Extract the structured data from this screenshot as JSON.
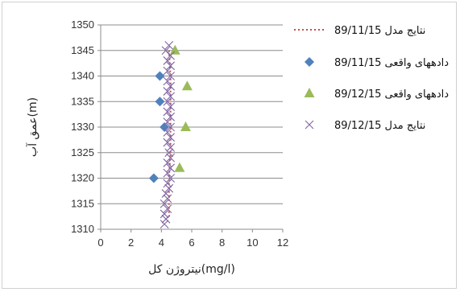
{
  "chart_data": {
    "type": "scatter",
    "xlabel": "نیتروژن کل(mg/l)",
    "ylabel": "عمق آب(m)",
    "xlim": [
      0,
      12
    ],
    "ylim": [
      1310,
      1350
    ],
    "x_ticks": [
      "0",
      "2",
      "4",
      "6",
      "8",
      "10",
      "12"
    ],
    "y_ticks": [
      "1310",
      "1315",
      "1320",
      "1325",
      "1330",
      "1335",
      "1340",
      "1345",
      "1350"
    ],
    "grid": "horizontal",
    "legend_position": "right",
    "series": [
      {
        "name": "89/11/15 نتایج مدل",
        "kind": "dotted-line",
        "color": "#c0504d",
        "points": [
          [
            4.5,
            1345
          ],
          [
            4.6,
            1340
          ],
          [
            4.6,
            1335
          ],
          [
            4.6,
            1330
          ],
          [
            4.6,
            1325
          ],
          [
            4.5,
            1320
          ],
          [
            4.5,
            1315
          ],
          [
            4.5,
            1312
          ]
        ]
      },
      {
        "name": "89/11/15 دادههای واقعی",
        "kind": "diamond",
        "color": "#4f81bd",
        "points": [
          [
            3.9,
            1340
          ],
          [
            3.9,
            1335
          ],
          [
            4.2,
            1330
          ],
          [
            3.5,
            1320
          ]
        ]
      },
      {
        "name": "89/12/15 دادههای واقعی",
        "kind": "triangle",
        "color": "#9bbb59",
        "points": [
          [
            4.9,
            1345
          ],
          [
            5.7,
            1338
          ],
          [
            5.6,
            1330
          ],
          [
            5.2,
            1322
          ]
        ]
      },
      {
        "name": "89/12/15 نتایج مدل",
        "kind": "x",
        "color": "#8064a2",
        "points": [
          [
            4.5,
            1346
          ],
          [
            4.3,
            1345
          ],
          [
            4.6,
            1344
          ],
          [
            4.4,
            1343
          ],
          [
            4.6,
            1342
          ],
          [
            4.4,
            1341
          ],
          [
            4.6,
            1340
          ],
          [
            4.4,
            1339
          ],
          [
            4.6,
            1338
          ],
          [
            4.4,
            1337
          ],
          [
            4.6,
            1336
          ],
          [
            4.4,
            1335
          ],
          [
            4.6,
            1334
          ],
          [
            4.4,
            1333
          ],
          [
            4.6,
            1332
          ],
          [
            4.4,
            1331
          ],
          [
            4.6,
            1330
          ],
          [
            4.4,
            1329
          ],
          [
            4.6,
            1328
          ],
          [
            4.4,
            1327
          ],
          [
            4.6,
            1326
          ],
          [
            4.5,
            1325
          ],
          [
            4.6,
            1324
          ],
          [
            4.4,
            1323
          ],
          [
            4.6,
            1322
          ],
          [
            4.4,
            1321
          ],
          [
            4.6,
            1320
          ],
          [
            4.4,
            1319
          ],
          [
            4.5,
            1318
          ],
          [
            4.3,
            1317
          ],
          [
            4.4,
            1316
          ],
          [
            4.2,
            1315
          ],
          [
            4.4,
            1314
          ],
          [
            4.2,
            1313
          ],
          [
            4.3,
            1312
          ],
          [
            4.2,
            1311
          ]
        ]
      }
    ]
  }
}
